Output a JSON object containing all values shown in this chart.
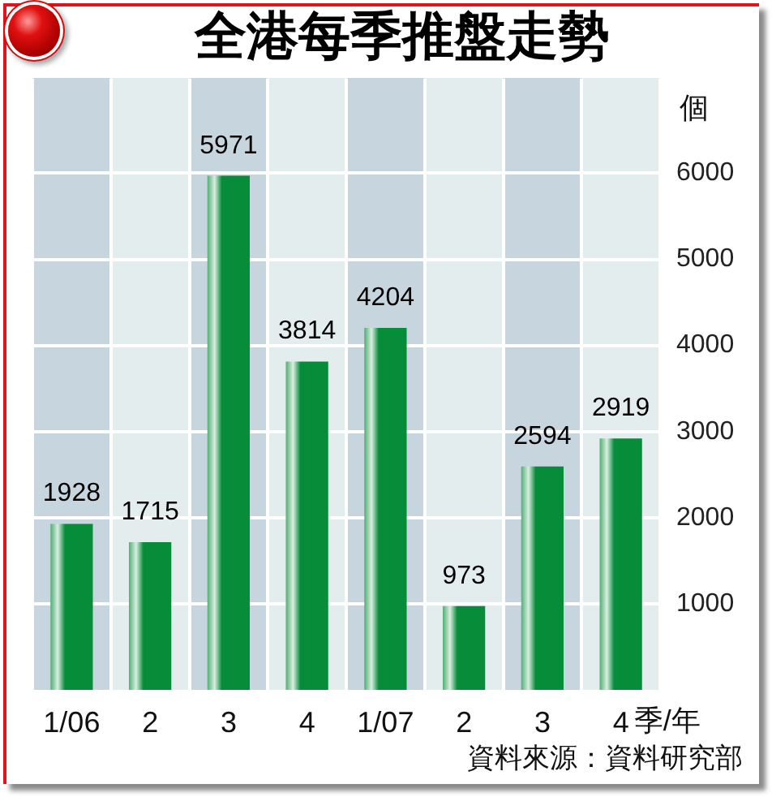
{
  "chart_data": {
    "type": "bar",
    "title": "全港每季推盤走勢",
    "categories": [
      "1/06",
      "2",
      "3",
      "4",
      "1/07",
      "2",
      "3",
      "4"
    ],
    "values": [
      1928,
      1715,
      5971,
      3814,
      4204,
      973,
      2594,
      2919
    ],
    "color": "#078c3a",
    "xlabel": "季/年",
    "ylabel": "個",
    "ylim": [
      0,
      7100
    ],
    "yticks": [
      1000,
      2000,
      3000,
      4000,
      5000,
      6000
    ],
    "grid": true,
    "data_labels": true,
    "annotations": [
      "資料來源：資料研究部"
    ]
  }
}
